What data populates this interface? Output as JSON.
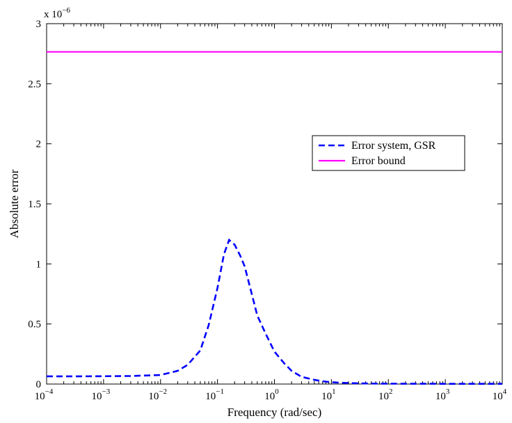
{
  "chart_data": {
    "type": "line",
    "title": "",
    "xlabel": "Frequency (rad/sec)",
    "ylabel": "Absolute error",
    "x_scale": "log",
    "xlim": [
      0.0001,
      10000
    ],
    "ylim": [
      0,
      3e-06
    ],
    "y_multiplier_label": "x 10",
    "y_multiplier_exponent": "−6",
    "x_ticks": [
      {
        "base": "10",
        "exp": "−4",
        "value": 0.0001
      },
      {
        "base": "10",
        "exp": "−3",
        "value": 0.001
      },
      {
        "base": "10",
        "exp": "−2",
        "value": 0.01
      },
      {
        "base": "10",
        "exp": "−1",
        "value": 0.1
      },
      {
        "base": "10",
        "exp": "0",
        "value": 1
      },
      {
        "base": "10",
        "exp": "1",
        "value": 10
      },
      {
        "base": "10",
        "exp": "2",
        "value": 100
      },
      {
        "base": "10",
        "exp": "3",
        "value": 1000
      },
      {
        "base": "10",
        "exp": "4",
        "value": 10000
      }
    ],
    "y_ticks": [
      {
        "label": "0",
        "value": 0
      },
      {
        "label": "0.5",
        "value": 5e-07
      },
      {
        "label": "1",
        "value": 1e-06
      },
      {
        "label": "1.5",
        "value": 1.5e-06
      },
      {
        "label": "2",
        "value": 2e-06
      },
      {
        "label": "2.5",
        "value": 2.5e-06
      },
      {
        "label": "3",
        "value": 3e-06
      }
    ],
    "grid": false,
    "legend_position": "center-right",
    "series": [
      {
        "name": "Error system, GSR",
        "color": "#0000ff",
        "style": "dashed",
        "x": [
          0.0001,
          0.0003,
          0.001,
          0.003,
          0.01,
          0.02,
          0.03,
          0.05,
          0.07,
          0.1,
          0.13,
          0.16,
          0.2,
          0.25,
          0.3,
          0.4,
          0.5,
          0.7,
          1,
          1.5,
          2,
          3,
          5,
          7,
          10,
          20,
          50,
          100,
          1000,
          10000
        ],
        "y": [
          6.4e-08,
          6.4e-08,
          6.5e-08,
          6.7e-08,
          7.5e-08,
          1.1e-07,
          1.6e-07,
          2.8e-07,
          4.9e-07,
          8e-07,
          1.08e-06,
          1.2e-06,
          1.16e-06,
          1.07e-06,
          9.8e-07,
          7.5e-07,
          5.7e-07,
          4.2e-07,
          2.7e-07,
          1.7e-07,
          1.1e-07,
          6e-08,
          3.5e-08,
          2.3e-08,
          1.5e-08,
          8e-09,
          4e-09,
          3e-09,
          2e-09,
          2e-09
        ]
      },
      {
        "name": "Error bound",
        "color": "#ff00ff",
        "style": "solid",
        "x": [
          0.0001,
          10000
        ],
        "y": [
          2.765e-06,
          2.765e-06
        ]
      }
    ]
  }
}
